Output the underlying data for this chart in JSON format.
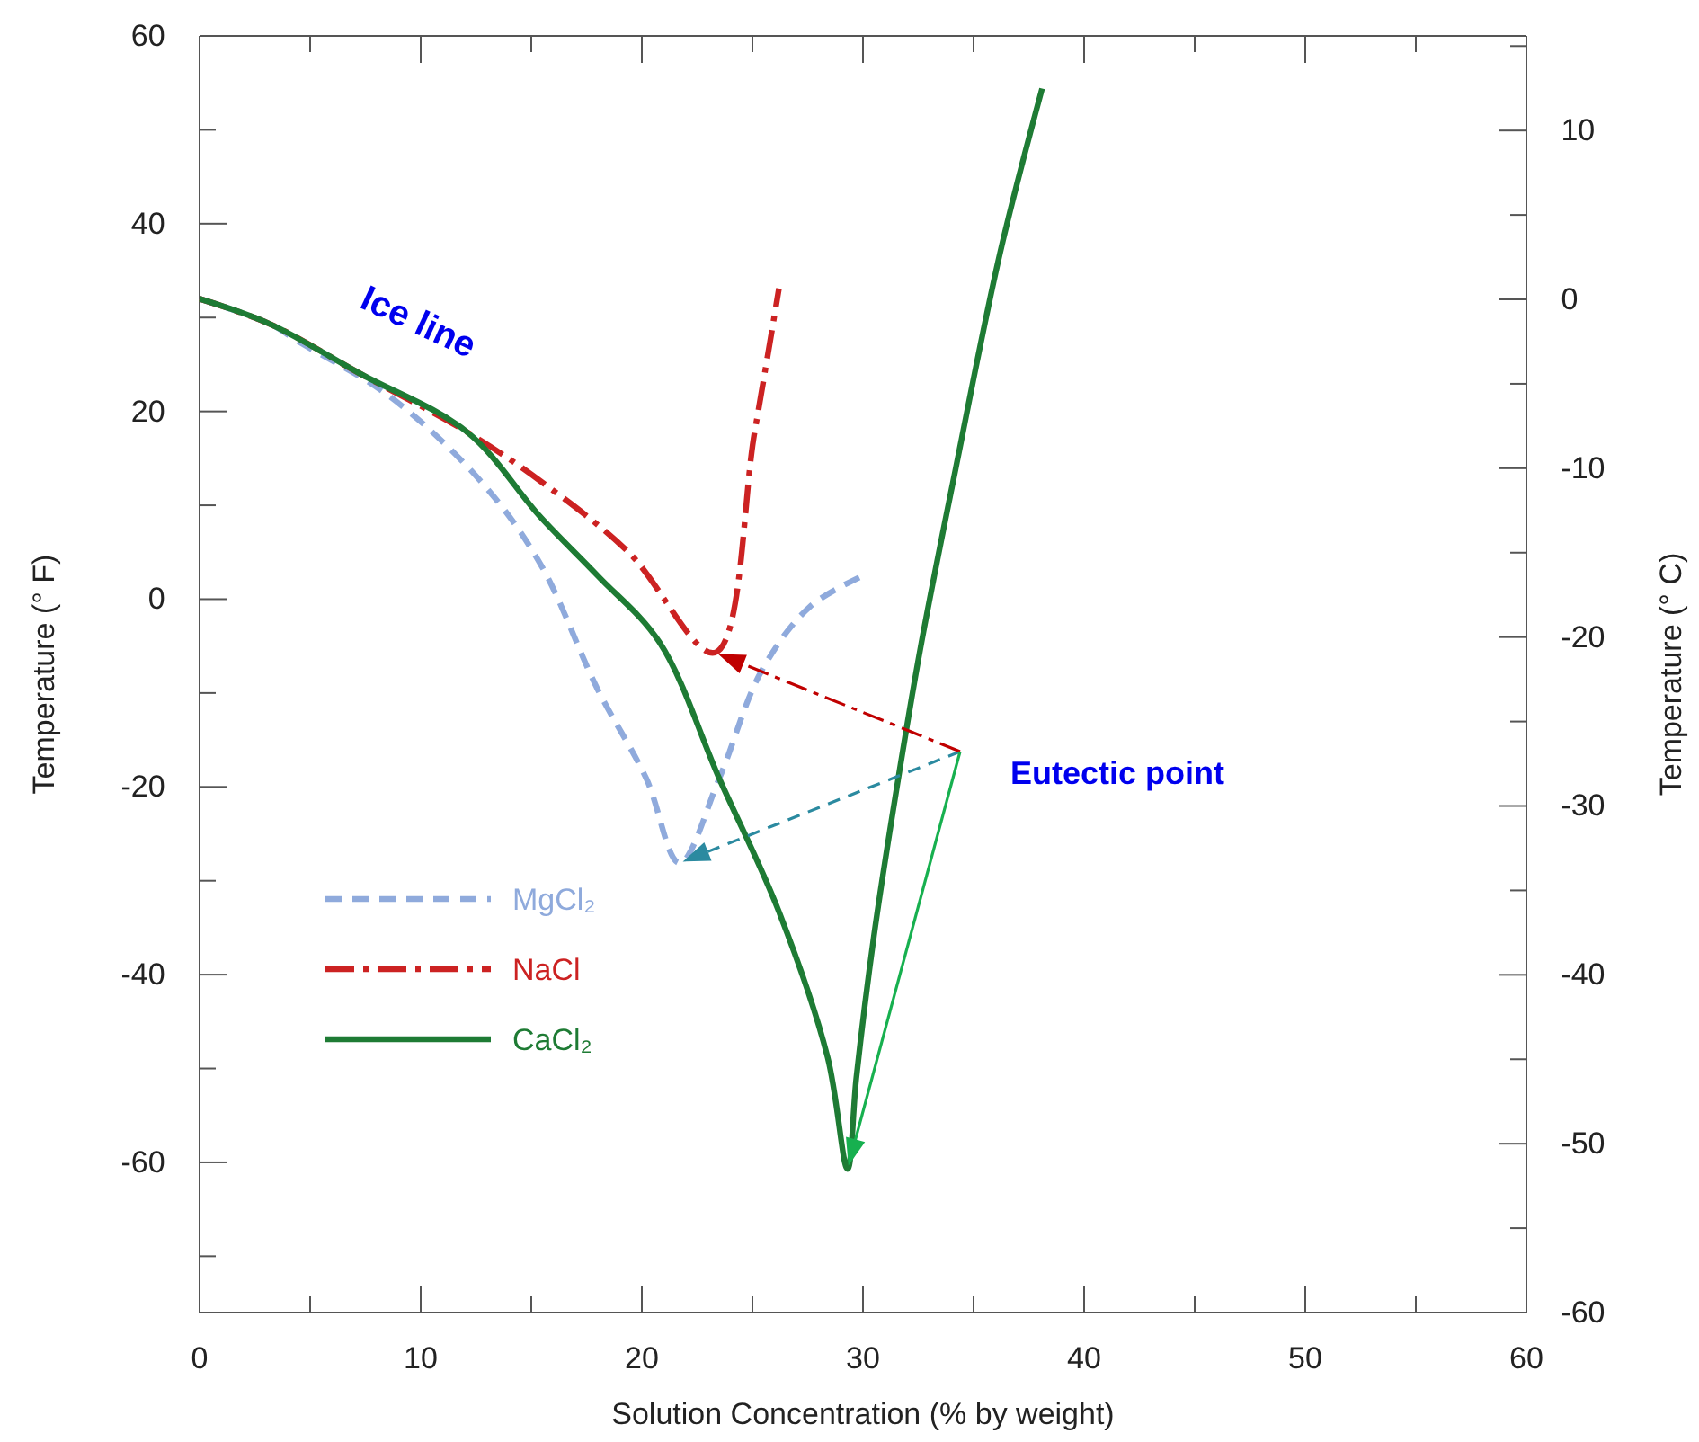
{
  "chart_data": {
    "type": "line",
    "xlabel": "Solution Concentration  (% by weight)",
    "ylabel": "Temperature (° F)",
    "y2label": "Temperature (° C)",
    "xlim": [
      0,
      60
    ],
    "xticks": [
      0,
      {
        "value": 5,
        "label": null
      },
      10,
      {
        "value": 15,
        "label": null
      },
      20,
      {
        "value": 25,
        "label": null
      },
      30,
      {
        "value": 35,
        "label": null
      },
      40,
      {
        "value": 45,
        "label": null
      },
      50,
      {
        "value": 55,
        "label": null
      },
      60
    ],
    "ylim": [
      -76,
      60
    ],
    "yticks": [
      {
        "value": -70,
        "label": null
      },
      -60,
      {
        "value": -50,
        "label": null
      },
      -40,
      {
        "value": -30,
        "label": null
      },
      -20,
      {
        "value": -10,
        "label": null
      },
      0,
      {
        "value": 10,
        "label": null
      },
      20,
      {
        "value": 30,
        "label": null
      },
      40,
      {
        "value": 50,
        "label": null
      },
      60
    ],
    "y2lim": [
      -60,
      15.6
    ],
    "y2ticks": [
      -60,
      {
        "value": -55,
        "label": null
      },
      -50,
      {
        "value": -45,
        "label": null
      },
      -40,
      {
        "value": -35,
        "label": null
      },
      -30,
      {
        "value": -25,
        "label": null
      },
      -20,
      {
        "value": -15,
        "label": null
      },
      -10,
      {
        "value": -5,
        "label": null
      },
      0,
      {
        "value": 5,
        "label": null
      },
      10,
      {
        "value": 15,
        "label": null
      }
    ],
    "grid": false,
    "legend": "bottom left",
    "series": [
      {
        "name": "MgCl₂",
        "color": "#8faadc",
        "line_style": "dashed",
        "x": [
          0,
          3.2,
          4.5,
          8.6,
          12.7,
          15.4,
          18,
          20.2,
          21.7,
          23.5,
          25.4,
          27.6,
          30
        ],
        "values": [
          32,
          29.3,
          27.4,
          21.6,
          12.6,
          3.8,
          -9.6,
          -19.1,
          -28.1,
          -19.1,
          -7.7,
          -0.8,
          2.5
        ]
      },
      {
        "name": "NaCl",
        "color": "#cc2222",
        "line_style": "dashdot",
        "x": [
          0,
          3.2,
          7.2,
          12.1,
          15.4,
          19.4,
          23.3,
          25.1,
          26.2
        ],
        "values": [
          32,
          29.3,
          24.1,
          17.8,
          12.6,
          5,
          -5.7,
          17.8,
          33.1
        ]
      },
      {
        "name": "CaCl₂",
        "color": "#1e7b34",
        "line_style": "solid",
        "x": [
          0,
          3.2,
          7.2,
          12.1,
          15.4,
          18,
          20.8,
          23.5,
          26.2,
          28.4,
          29.3,
          29.7,
          30.5,
          31.5,
          32.6,
          34.2,
          36.2,
          38.1
        ],
        "values": [
          32,
          29.3,
          24.1,
          17.8,
          8.8,
          2.5,
          -4.6,
          -19.1,
          -33.3,
          -48.8,
          -60.7,
          -51,
          -35.8,
          -20.5,
          -5.2,
          14,
          36.9,
          54.4
        ]
      }
    ],
    "annotations": [
      "Ice line",
      "Eutectic point"
    ]
  }
}
